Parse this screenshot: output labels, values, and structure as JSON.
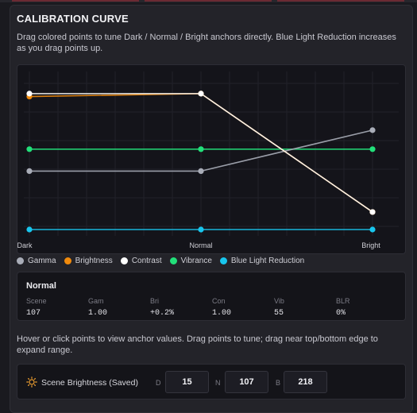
{
  "panel": {
    "title": "CALIBRATION CURVE",
    "description": "Drag colored points to tune Dark / Normal / Bright anchors directly. Blue Light Reduction increases as you drag points up."
  },
  "colors": {
    "gamma": "#a9adb8",
    "brightness": "#f08a0c",
    "contrast": "#ffffff",
    "vibrance": "#22e07a",
    "blue_light_reduction": "#18c6ee"
  },
  "chart_data": {
    "type": "line",
    "categories": [
      "Dark",
      "Normal",
      "Bright"
    ],
    "ylim": [
      0,
      100
    ],
    "grid": true,
    "legend_position": "bottom",
    "series": [
      {
        "name": "Gamma",
        "color": "#a9adb8",
        "values": [
          40,
          40,
          68
        ]
      },
      {
        "name": "Brightness",
        "color": "#f08a0c",
        "values": [
          91,
          93,
          12
        ]
      },
      {
        "name": "Contrast",
        "color": "#ffffff",
        "values": [
          93,
          93,
          12
        ]
      },
      {
        "name": "Vibrance",
        "color": "#22e07a",
        "values": [
          55,
          55,
          55
        ]
      },
      {
        "name": "Blue Light Reduction",
        "color": "#18c6ee",
        "values": [
          0,
          0,
          0
        ]
      }
    ]
  },
  "legend": [
    {
      "label": "Gamma",
      "color": "#a9adb8"
    },
    {
      "label": "Brightness",
      "color": "#f08a0c"
    },
    {
      "label": "Contrast",
      "color": "#ffffff"
    },
    {
      "label": "Vibrance",
      "color": "#22e07a"
    },
    {
      "label": "Blue Light Reduction",
      "color": "#18c6ee"
    }
  ],
  "info": {
    "name": "Normal",
    "columns": [
      {
        "header": "Scene",
        "value": "107"
      },
      {
        "header": "Gam",
        "value": "1.00"
      },
      {
        "header": "Bri",
        "value": "+0.2%"
      },
      {
        "header": "Con",
        "value": "1.00"
      },
      {
        "header": "Vib",
        "value": "55"
      },
      {
        "header": "BLR",
        "value": "0%"
      }
    ]
  },
  "hint": "Hover or click points to view anchor values. Drag points to tune; drag near top/bottom edge to expand range.",
  "scene": {
    "label": "Scene Brightness (Saved)",
    "icon": "sun-icon",
    "d_key": "D",
    "d_value": "15",
    "n_key": "N",
    "n_value": "107",
    "b_key": "B",
    "b_value": "218"
  }
}
